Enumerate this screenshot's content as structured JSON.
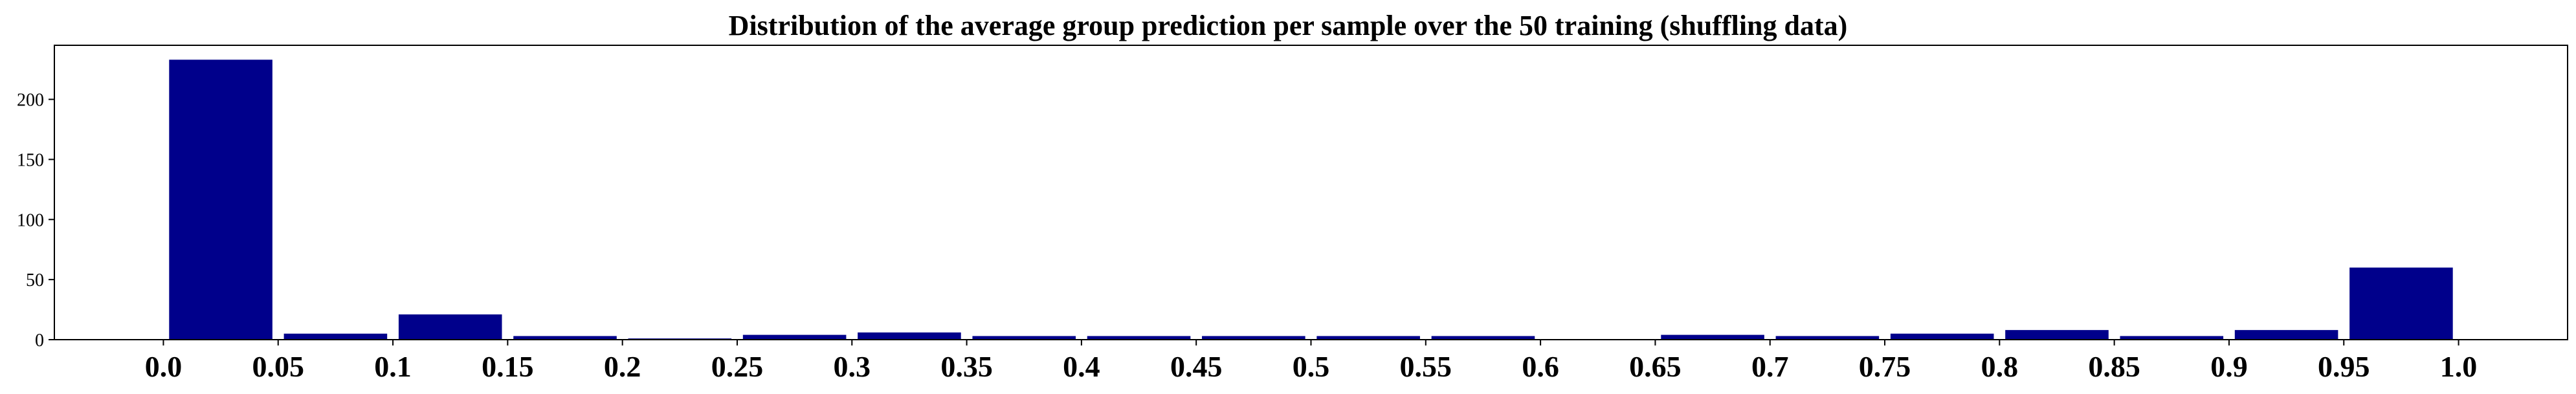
{
  "chart_data": {
    "type": "bar",
    "title": "Distribution of the average group prediction per sample over the 50 training (shuffling data)",
    "xlabel": "",
    "ylabel": "",
    "categories": [
      "0.0",
      "0.05",
      "0.1",
      "0.15",
      "0.2",
      "0.25",
      "0.3",
      "0.35",
      "0.4",
      "0.45",
      "0.5",
      "0.55",
      "0.6",
      "0.65",
      "0.7",
      "0.75",
      "0.8",
      "0.85",
      "0.9",
      "0.95",
      "1.0"
    ],
    "bins": [
      {
        "start": 0.0,
        "end": 0.05,
        "value": 233
      },
      {
        "start": 0.05,
        "end": 0.1,
        "value": 5
      },
      {
        "start": 0.1,
        "end": 0.15,
        "value": 21
      },
      {
        "start": 0.15,
        "end": 0.2,
        "value": 3
      },
      {
        "start": 0.2,
        "end": 0.25,
        "value": 1
      },
      {
        "start": 0.25,
        "end": 0.3,
        "value": 4
      },
      {
        "start": 0.3,
        "end": 0.35,
        "value": 6
      },
      {
        "start": 0.35,
        "end": 0.4,
        "value": 3
      },
      {
        "start": 0.4,
        "end": 0.45,
        "value": 3
      },
      {
        "start": 0.45,
        "end": 0.5,
        "value": 3
      },
      {
        "start": 0.5,
        "end": 0.55,
        "value": 3
      },
      {
        "start": 0.55,
        "end": 0.6,
        "value": 3
      },
      {
        "start": 0.6,
        "end": 0.65,
        "value": 0
      },
      {
        "start": 0.65,
        "end": 0.7,
        "value": 4
      },
      {
        "start": 0.7,
        "end": 0.75,
        "value": 3
      },
      {
        "start": 0.75,
        "end": 0.8,
        "value": 5
      },
      {
        "start": 0.8,
        "end": 0.85,
        "value": 8
      },
      {
        "start": 0.85,
        "end": 0.9,
        "value": 3
      },
      {
        "start": 0.9,
        "end": 0.95,
        "value": 8
      },
      {
        "start": 0.95,
        "end": 1.0,
        "value": 60
      }
    ],
    "xlim": [
      -0.0475,
      1.0475
    ],
    "ylim": [
      0,
      245
    ],
    "yticks": [
      0,
      50,
      100,
      150,
      200,
      250
    ],
    "ytick_labels": [
      "0",
      "50",
      "100",
      "150",
      "200",
      "250"
    ],
    "grid": false,
    "legend": "none",
    "bar_color": "#00008B"
  }
}
